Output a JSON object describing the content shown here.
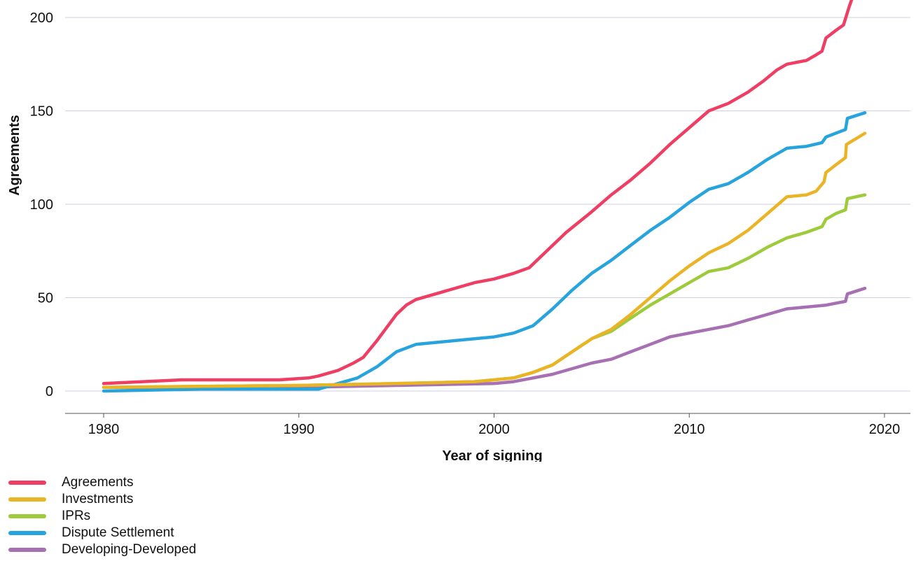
{
  "chart_data": {
    "type": "line",
    "title": "",
    "xlabel": "Year of signing",
    "ylabel": "Agreements",
    "xlim": [
      1980,
      2020
    ],
    "ylim": [
      0,
      200
    ],
    "x_ticks": [
      1980,
      1990,
      2000,
      2010,
      2020
    ],
    "y_ticks": [
      0,
      50,
      100,
      150,
      200
    ],
    "grid": "horizontal",
    "legend_position": "bottom-left",
    "series": [
      {
        "name": "Agreements",
        "color": "#ef3e63",
        "points": [
          [
            1980,
            4
          ],
          [
            1982,
            5
          ],
          [
            1984,
            6
          ],
          [
            1986,
            6
          ],
          [
            1989,
            6
          ],
          [
            1990.5,
            7
          ],
          [
            1991,
            8
          ],
          [
            1992,
            11
          ],
          [
            1992.8,
            15
          ],
          [
            1993.3,
            18
          ],
          [
            1994,
            27
          ],
          [
            1994.5,
            34
          ],
          [
            1995,
            41
          ],
          [
            1995.5,
            46
          ],
          [
            1996,
            49
          ],
          [
            1997,
            52
          ],
          [
            1998,
            55
          ],
          [
            1999,
            58
          ],
          [
            2000,
            60
          ],
          [
            2001,
            63
          ],
          [
            2001.8,
            66
          ],
          [
            2002.3,
            71
          ],
          [
            2003,
            78
          ],
          [
            2003.7,
            85
          ],
          [
            2005,
            96
          ],
          [
            2006,
            105
          ],
          [
            2007,
            113
          ],
          [
            2008,
            122
          ],
          [
            2009,
            132
          ],
          [
            2010,
            141
          ],
          [
            2011,
            150
          ],
          [
            2012,
            154
          ],
          [
            2013,
            160
          ],
          [
            2013.8,
            166
          ],
          [
            2014.5,
            172
          ],
          [
            2015,
            175
          ],
          [
            2016,
            177
          ],
          [
            2016.5,
            180
          ],
          [
            2016.8,
            182
          ],
          [
            2017,
            189
          ],
          [
            2017.5,
            193
          ],
          [
            2017.9,
            196
          ],
          [
            2018.2,
            206
          ],
          [
            2018.4,
            212
          ],
          [
            2018.6,
            222
          ]
        ]
      },
      {
        "name": "Investments",
        "color": "#e9b425",
        "points": [
          [
            1980,
            2
          ],
          [
            1990,
            3
          ],
          [
            1995,
            4
          ],
          [
            1999,
            5
          ],
          [
            2000,
            6
          ],
          [
            2001,
            7
          ],
          [
            2002,
            10
          ],
          [
            2003,
            14
          ],
          [
            2004,
            21
          ],
          [
            2005,
            28
          ],
          [
            2006,
            33
          ],
          [
            2007,
            41
          ],
          [
            2008,
            50
          ],
          [
            2009,
            59
          ],
          [
            2010,
            67
          ],
          [
            2011,
            74
          ],
          [
            2012,
            79
          ],
          [
            2013,
            86
          ],
          [
            2014,
            95
          ],
          [
            2015,
            104
          ],
          [
            2016,
            105
          ],
          [
            2016.5,
            107
          ],
          [
            2016.9,
            112
          ],
          [
            2017,
            117
          ],
          [
            2017.5,
            121
          ],
          [
            2018,
            125
          ],
          [
            2018.05,
            132
          ],
          [
            2019,
            138
          ]
        ]
      },
      {
        "name": "IPRs",
        "color": "#9ecb3c",
        "points": [
          [
            1980,
            2
          ],
          [
            1990,
            3
          ],
          [
            1995,
            4
          ],
          [
            1999,
            5
          ],
          [
            2000,
            6
          ],
          [
            2001,
            7
          ],
          [
            2002,
            10
          ],
          [
            2003,
            14
          ],
          [
            2004,
            21
          ],
          [
            2005,
            28
          ],
          [
            2006,
            32
          ],
          [
            2007,
            39
          ],
          [
            2008,
            46
          ],
          [
            2009,
            52
          ],
          [
            2010,
            58
          ],
          [
            2011,
            64
          ],
          [
            2012,
            66
          ],
          [
            2013,
            71
          ],
          [
            2014,
            77
          ],
          [
            2015,
            82
          ],
          [
            2016,
            85
          ],
          [
            2016.8,
            88
          ],
          [
            2017,
            92
          ],
          [
            2017.5,
            95
          ],
          [
            2018,
            97
          ],
          [
            2018.1,
            103
          ],
          [
            2019,
            105
          ]
        ]
      },
      {
        "name": "Dispute Settlement",
        "color": "#28a4dd",
        "points": [
          [
            1980,
            0
          ],
          [
            1985,
            1
          ],
          [
            1991,
            1
          ],
          [
            1992,
            4
          ],
          [
            1993,
            7
          ],
          [
            1994,
            13
          ],
          [
            1995,
            21
          ],
          [
            1996,
            25
          ],
          [
            1997,
            26
          ],
          [
            1998,
            27
          ],
          [
            1999,
            28
          ],
          [
            2000,
            29
          ],
          [
            2001,
            31
          ],
          [
            2002,
            35
          ],
          [
            2003,
            44
          ],
          [
            2004,
            54
          ],
          [
            2005,
            63
          ],
          [
            2006,
            70
          ],
          [
            2007,
            78
          ],
          [
            2008,
            86
          ],
          [
            2009,
            93
          ],
          [
            2010,
            101
          ],
          [
            2011,
            108
          ],
          [
            2012,
            111
          ],
          [
            2013,
            117
          ],
          [
            2014,
            124
          ],
          [
            2015,
            130
          ],
          [
            2016,
            131
          ],
          [
            2016.8,
            133
          ],
          [
            2017,
            136
          ],
          [
            2017.5,
            138
          ],
          [
            2018,
            140
          ],
          [
            2018.1,
            146
          ],
          [
            2019,
            149
          ]
        ]
      },
      {
        "name": "Developing-Developed",
        "color": "#a670b3",
        "points": [
          [
            1980,
            2
          ],
          [
            1990,
            2
          ],
          [
            1995,
            3
          ],
          [
            2000,
            4
          ],
          [
            2001,
            5
          ],
          [
            2002,
            7
          ],
          [
            2003,
            9
          ],
          [
            2004,
            12
          ],
          [
            2005,
            15
          ],
          [
            2006,
            17
          ],
          [
            2007,
            21
          ],
          [
            2008,
            25
          ],
          [
            2009,
            29
          ],
          [
            2010,
            31
          ],
          [
            2011,
            33
          ],
          [
            2012,
            35
          ],
          [
            2013,
            38
          ],
          [
            2014,
            41
          ],
          [
            2015,
            44
          ],
          [
            2016,
            45
          ],
          [
            2017,
            46
          ],
          [
            2018,
            48
          ],
          [
            2018.1,
            52
          ],
          [
            2019,
            55
          ]
        ]
      }
    ]
  }
}
